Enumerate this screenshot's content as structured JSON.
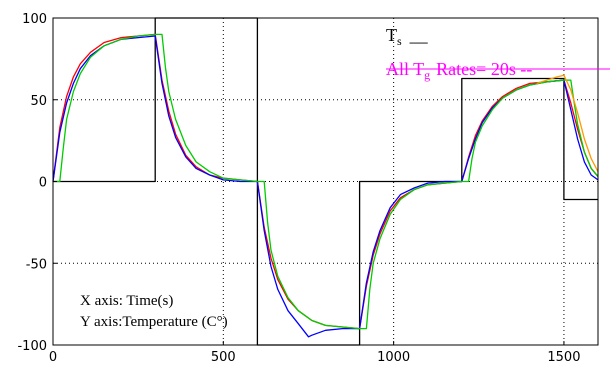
{
  "chart_data": {
    "type": "line",
    "title": "",
    "xlabel": "",
    "ylabel": "",
    "xlim": [
      0,
      1600
    ],
    "ylim": [
      -100,
      100
    ],
    "x_ticks": [
      0,
      500,
      1000,
      1500
    ],
    "y_ticks": [
      -100,
      -50,
      0,
      50,
      100
    ],
    "grid": true,
    "setpoint_levels": [
      {
        "from": 0,
        "to": 300,
        "value": 0
      },
      {
        "from": 300,
        "to": 600,
        "value": 100
      },
      {
        "from": 600,
        "to": 900,
        "value": -100
      },
      {
        "from": 900,
        "to": 1200,
        "value": 0
      },
      {
        "from": 1200,
        "to": 1500,
        "value": 63
      },
      {
        "from": 1500,
        "to": 1600,
        "value": -11
      }
    ],
    "series": [
      {
        "name": "",
        "color": "#000000",
        "x": [
          0,
          300,
          300,
          600,
          600,
          900,
          900,
          1200,
          1200,
          1500,
          1500,
          1600
        ],
        "y": [
          0,
          0,
          100,
          100,
          -100,
          -100,
          0,
          0,
          63,
          63,
          -11,
          -11
        ]
      },
      {
        "name": "",
        "color": "#ff0000",
        "x": [
          0,
          20,
          40,
          60,
          80,
          110,
          150,
          200,
          250,
          300,
          320,
          340,
          360,
          390,
          420,
          460,
          500,
          550,
          600,
          620,
          640,
          660,
          690,
          720,
          760,
          800,
          850,
          900,
          920,
          940,
          960,
          990,
          1020,
          1060,
          1100,
          1150,
          1200,
          1220,
          1240,
          1260,
          1290,
          1320,
          1360,
          1400,
          1450,
          1500,
          1520,
          1540,
          1560,
          1580,
          1600
        ],
        "y": [
          0,
          33,
          52,
          64,
          72,
          79,
          85,
          88,
          89,
          90,
          62,
          43,
          29,
          16,
          9,
          4,
          2,
          1,
          0,
          -28,
          -47,
          -60,
          -72,
          -79,
          -85,
          -88,
          -89,
          -90,
          -64,
          -45,
          -32,
          -18,
          -10,
          -5,
          -2,
          -1,
          0,
          15,
          28,
          37,
          46,
          52,
          57,
          60,
          61,
          62,
          48,
          32,
          18,
          8,
          3
        ]
      },
      {
        "name": "",
        "color": "#0000ff",
        "x": [
          0,
          20,
          40,
          60,
          80,
          110,
          150,
          200,
          250,
          300,
          320,
          340,
          360,
          390,
          420,
          460,
          500,
          550,
          600,
          620,
          640,
          660,
          690,
          720,
          750,
          760,
          800,
          850,
          900,
          920,
          940,
          960,
          990,
          1020,
          1060,
          1100,
          1150,
          1200,
          1220,
          1240,
          1260,
          1290,
          1320,
          1360,
          1400,
          1450,
          1500,
          1520,
          1540,
          1560,
          1580,
          1600
        ],
        "y": [
          0,
          30,
          48,
          60,
          69,
          77,
          83,
          87,
          88,
          89,
          60,
          40,
          27,
          15,
          8,
          4,
          1,
          0,
          0,
          -30,
          -52,
          -66,
          -79,
          -87,
          -95,
          -94,
          -91,
          -90,
          -90,
          -62,
          -43,
          -30,
          -16,
          -8,
          -4,
          -1,
          0,
          0,
          14,
          26,
          36,
          45,
          51,
          56,
          59,
          61,
          62,
          44,
          26,
          12,
          4,
          1
        ]
      },
      {
        "name": "",
        "color": "#00cc00",
        "x": [
          0,
          20,
          30,
          40,
          60,
          80,
          110,
          150,
          200,
          250,
          300,
          320,
          330,
          340,
          360,
          390,
          420,
          460,
          500,
          550,
          600,
          620,
          630,
          640,
          660,
          690,
          720,
          760,
          800,
          850,
          900,
          920,
          930,
          940,
          960,
          990,
          1020,
          1060,
          1100,
          1150,
          1200,
          1220,
          1230,
          1240,
          1260,
          1290,
          1320,
          1360,
          1400,
          1450,
          1500,
          1520,
          1530,
          1540,
          1560,
          1580,
          1600
        ],
        "y": [
          0,
          0,
          20,
          38,
          55,
          66,
          76,
          83,
          87,
          89,
          90,
          90,
          70,
          55,
          38,
          22,
          12,
          6,
          2,
          1,
          0,
          0,
          -25,
          -42,
          -58,
          -71,
          -79,
          -85,
          -88,
          -89,
          -90,
          -90,
          -66,
          -50,
          -35,
          -20,
          -11,
          -5,
          -2,
          -1,
          0,
          0,
          14,
          24,
          34,
          44,
          51,
          56,
          59,
          61,
          62,
          62,
          48,
          35,
          18,
          8,
          3
        ]
      },
      {
        "name": "",
        "color": "#ff9900",
        "x": [
          1420,
          1450,
          1480,
          1500,
          1520,
          1540,
          1560,
          1580,
          1600
        ],
        "y": [
          60,
          62,
          64,
          65,
          56,
          42,
          26,
          14,
          6
        ]
      }
    ],
    "legend": {
      "ts_text": "T",
      "ts_sub": "s",
      "ts_dash": "__",
      "tg_prefix": "All T",
      "tg_sub": "g",
      "tg_suffix": "Rates= 20s --"
    },
    "annotations": {
      "line1": "X axis: Time(s)",
      "line2": "Y axis:Temperature (C°)"
    }
  }
}
